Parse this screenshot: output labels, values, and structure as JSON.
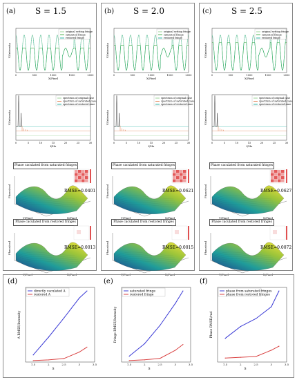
{
  "panel_labels": [
    "(a)",
    "(b)",
    "(c)",
    "(d)",
    "(e)",
    "(f)"
  ],
  "columns": [
    {
      "label": "(a)",
      "title": "S = 1.5",
      "rmse_saturated": "RMSE=0.0401",
      "rmse_restored": "RMSE=0.0013"
    },
    {
      "label": "(b)",
      "title": "S = 2.0",
      "rmse_saturated": "RMSE=0.0621",
      "rmse_restored": "RMSE=0.0015"
    },
    {
      "label": "(c)",
      "title": "S = 2.5",
      "rmse_saturated": "RMSE=0.0627",
      "rmse_restored": "RMSE=0.0072"
    }
  ],
  "fringe_plot": {
    "legend": [
      "original setting fringe",
      "saturated fringe",
      "restored fringe"
    ],
    "ylabel": "V/Intensity",
    "xlabel": "X/Pixel",
    "xticks": [
      "0",
      "500",
      "1000",
      "1500",
      "2000"
    ],
    "colors": {
      "original": "#9ed39a",
      "saturated": "#3aa83a",
      "restored": "#2db3a6"
    }
  },
  "spectrum_plot": {
    "legend": [
      "spectrum of original case",
      "spectrum of saturated case",
      "spectrum of restored case"
    ],
    "ylabel": "V/Intensity",
    "xlabel": "f/Hz",
    "xticks": [
      "0",
      "5",
      "10",
      "15",
      "20",
      "25",
      "30"
    ],
    "colors": {
      "original": "#9ed39a",
      "saturated": "#e07a4a",
      "restored": "#2db3a6"
    }
  },
  "phase_saturated_title": "Phase caculated from saturated fringes",
  "phase_restored_title": "Phase caculated from restored fringes",
  "phase_axis": {
    "z": "Phase/rad",
    "y": "Y/Pixel",
    "x": "X/Pixel"
  },
  "chart_data": [
    {
      "type": "line",
      "label": "(d)",
      "x": [
        1.5,
        2.0,
        2.5,
        3.0,
        3.25
      ],
      "xticks": [
        "1.5",
        "2",
        "2.5",
        "3",
        "3.5"
      ],
      "xlabel": "S",
      "ylabel": "A RMSE/Intensity",
      "series": [
        {
          "name": "directly caculated A",
          "color": "#3b3bd6",
          "values": [
            0.1,
            0.35,
            0.62,
            0.9,
            1.0
          ]
        },
        {
          "name": "restored A",
          "color": "#d94040",
          "values": [
            0.02,
            0.03,
            0.05,
            0.14,
            0.21
          ]
        }
      ]
    },
    {
      "type": "line",
      "label": "(e)",
      "x": [
        1.5,
        2.0,
        2.5,
        3.0,
        3.25
      ],
      "xticks": [
        "1.5",
        "2",
        "2.5",
        "3",
        "3.5"
      ],
      "xlabel": "S",
      "ylabel": "Fringe RMSE/Intensity",
      "series": [
        {
          "name": "saturated fringe",
          "color": "#3b3bd6",
          "values": [
            0.08,
            0.25,
            0.5,
            0.8,
            0.97
          ]
        },
        {
          "name": "restored fringe",
          "color": "#d94040",
          "values": [
            0.02,
            0.03,
            0.05,
            0.16,
            0.24
          ]
        }
      ]
    },
    {
      "type": "line",
      "label": "(f)",
      "x": [
        1.5,
        2.0,
        2.5,
        3.0,
        3.25
      ],
      "xticks": [
        "1.5",
        "2",
        "2.5",
        "3",
        "3.5"
      ],
      "xlabel": "S",
      "ylabel": "Phase RMSE/rad",
      "series": [
        {
          "name": "phase from saturated fringes",
          "color": "#3b3bd6",
          "values": [
            0.06,
            0.09,
            0.11,
            0.14,
            0.18
          ]
        },
        {
          "name": "phase from restored fringes",
          "color": "#d94040",
          "values": [
            0.01,
            0.012,
            0.014,
            0.03,
            0.04
          ]
        }
      ]
    }
  ]
}
